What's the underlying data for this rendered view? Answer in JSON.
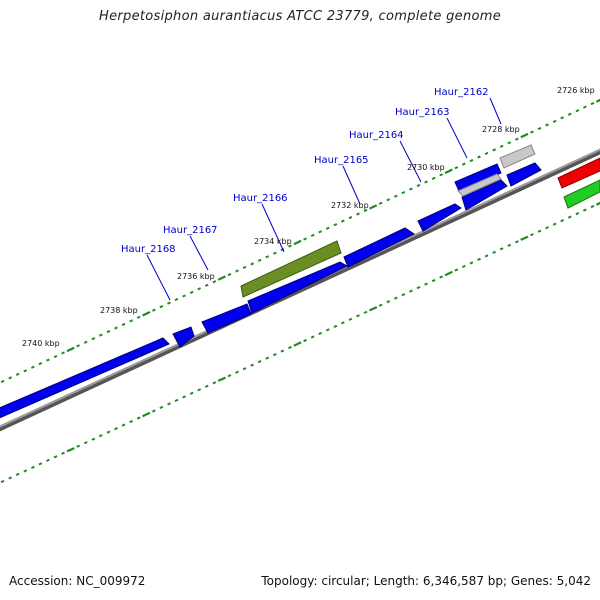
{
  "title": "Herpetosiphon aurantiacus ATCC 23779, complete genome",
  "footer": {
    "accession": "Accession: NC_009972",
    "topology": "Topology: circular; Length: 6,346,587 bp; Genes: 5,042"
  },
  "colors": {
    "forward_gene": "#0000ee",
    "selected_gene": "#6b8e23",
    "pseudo_gene": "#c0c0c0",
    "rna_red": "#ee0000",
    "rna_green": "#22cc22",
    "backbone": "#808080",
    "ticks": "#228b22",
    "label_line": "#0000cc"
  },
  "gene_labels": [
    "Haur_2162",
    "Haur_2163",
    "Haur_2164",
    "Haur_2165",
    "Haur_2166",
    "Haur_2167",
    "Haur_2168"
  ],
  "kbp_labels": [
    "2726 kbp",
    "2728 kbp",
    "2730 kbp",
    "2732 kbp",
    "2734 kbp",
    "2736 kbp",
    "2738 kbp",
    "2740 kbp"
  ]
}
